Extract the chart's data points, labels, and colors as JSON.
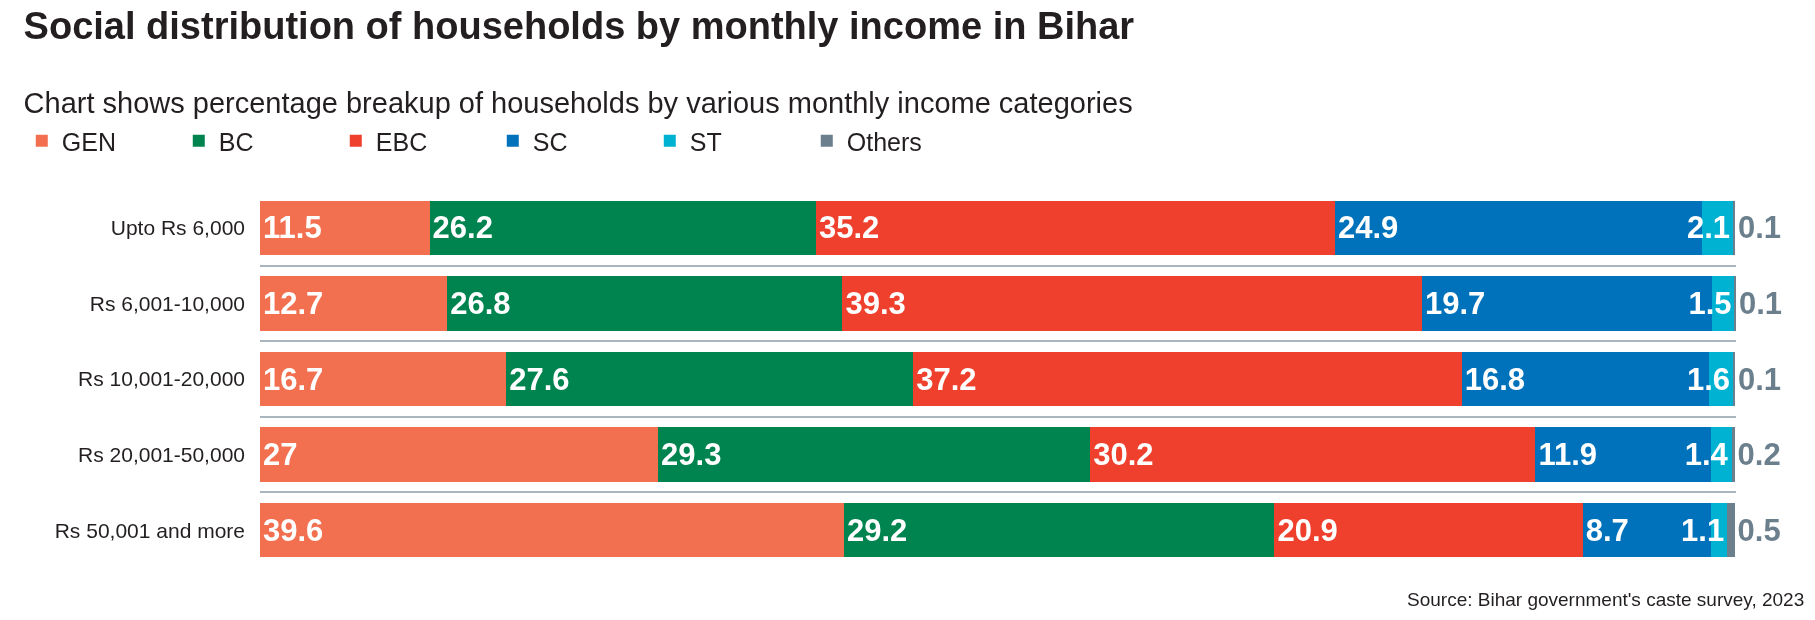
{
  "chart_data": {
    "type": "bar",
    "orientation": "horizontal",
    "stacked": true,
    "title": "Social distribution of households by monthly income in Bihar",
    "subtitle": "Chart shows percentage breakup of households by various monthly income categories",
    "categories": [
      "Upto Rs 6,000",
      "Rs 6,001-10,000",
      "Rs 10,001-20,000",
      "Rs 20,001-50,000",
      "Rs 50,001 and more"
    ],
    "series": [
      {
        "name": "GEN",
        "color": "#f26f4f",
        "values": [
          11.5,
          12.7,
          16.7,
          27,
          39.6
        ]
      },
      {
        "name": "BC",
        "color": "#00844f",
        "values": [
          26.2,
          26.8,
          27.6,
          29.3,
          29.2
        ]
      },
      {
        "name": "EBC",
        "color": "#ee402c",
        "values": [
          35.2,
          39.3,
          37.2,
          30.2,
          20.9
        ]
      },
      {
        "name": "SC",
        "color": "#0072bc",
        "values": [
          24.9,
          19.7,
          16.8,
          11.9,
          8.7
        ]
      },
      {
        "name": "ST",
        "color": "#00b2d2",
        "values": [
          2.1,
          1.5,
          1.6,
          1.4,
          1.1
        ]
      },
      {
        "name": "Others",
        "color": "#6b7f8d",
        "values": [
          0.1,
          0.1,
          0.1,
          0.2,
          0.5
        ]
      }
    ],
    "xlim": [
      0,
      100.1
    ],
    "data_labels": true,
    "legend": "top left",
    "grid": "y",
    "tick_labels": "y",
    "annotations": [
      "Source: Bihar government's caste survey, 2023"
    ]
  }
}
